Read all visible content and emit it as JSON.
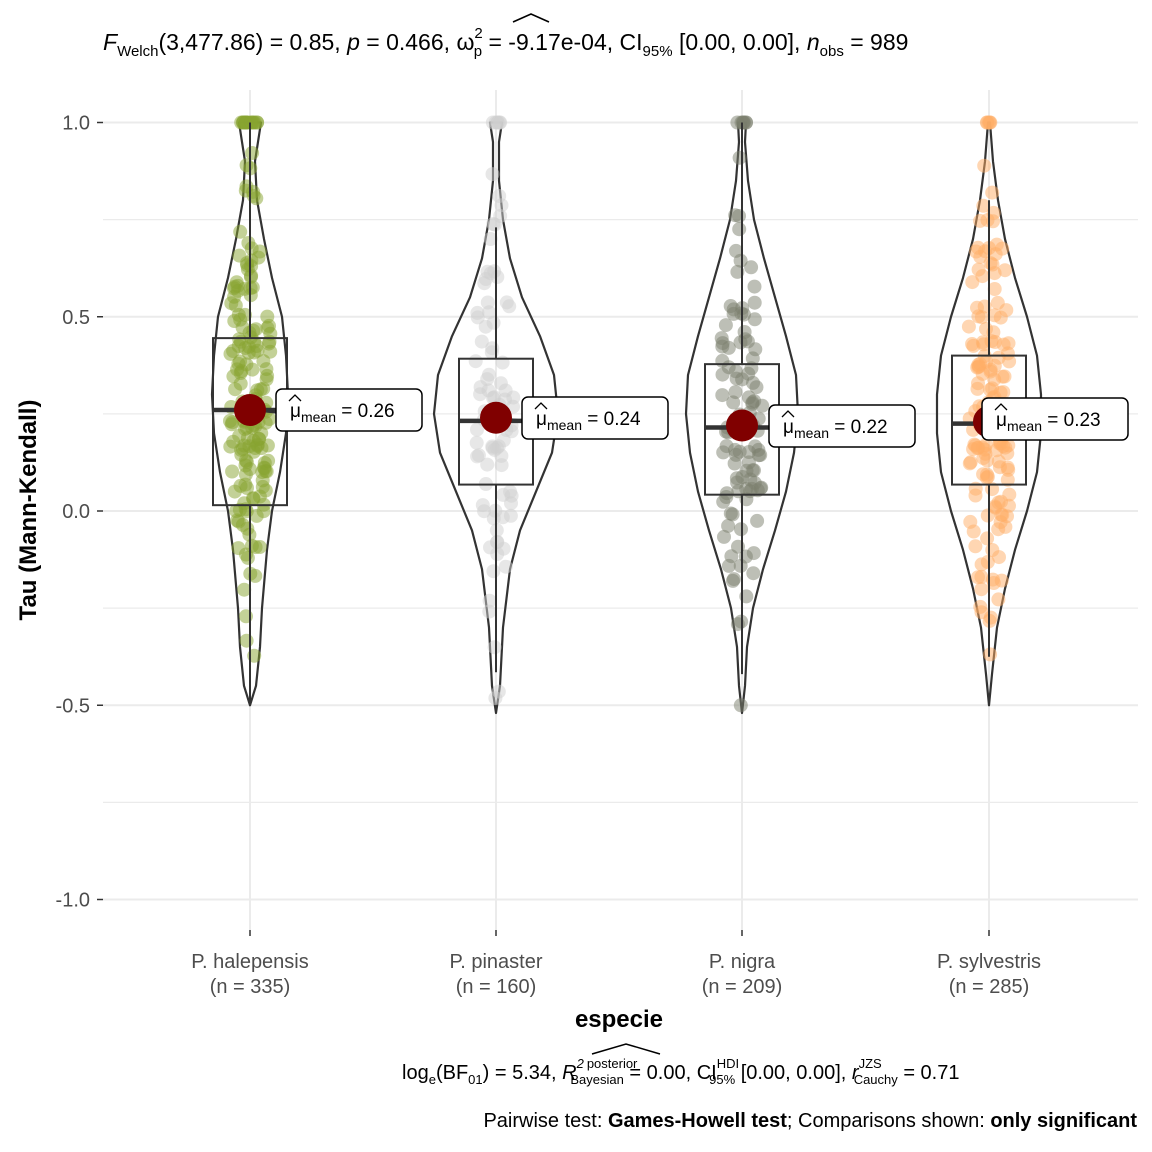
{
  "subtitle_top": {
    "F": "F",
    "F_sub": "Welch",
    "stat": "(3,477.86) = 0.85, ",
    "p": "p",
    "p_val": " = 0.466, ",
    "omega": "ω",
    "omega_sup": "2",
    "omega_sub": "p",
    "omega_val": " = -9.17e-04, CI",
    "ci_sub": "95%",
    "ci_val": " [0.00, 0.00], ",
    "n": "n",
    "n_sub": "obs",
    "n_val": " = 989"
  },
  "caption": {
    "bf_pre": "log",
    "bf_e": "e",
    "bf_mid": "(BF",
    "bf_sub": "01",
    "bf_val": ") = 5.34, ",
    "r2": "R",
    "r2_sup1": "2",
    "r2_sup2": "posterior",
    "r2_sub": "Bayesian",
    "r2_val": " = 0.00, CI",
    "hdi_sup": "HDI",
    "hdi_sub": "95%",
    "hdi_val": " [0.00, 0.00], ",
    "r": "r",
    "r_sup": "JZS",
    "r_sub": "Cauchy",
    "r_val": " = 0.71"
  },
  "pairwise": {
    "prefix": "Pairwise test: ",
    "test": "Games-Howell test",
    "middle": "; Comparisons shown: ",
    "shown": "only significant"
  },
  "chart_data": {
    "type": "violin-box-scatter",
    "xlabel": "especie",
    "ylabel": "Tau (Mann-Kendall)",
    "ylim": [
      -1.0,
      1.0
    ],
    "yticks": [
      -1.0,
      -0.5,
      0.0,
      0.5,
      1.0
    ],
    "ytick_labels": [
      "-1.0",
      "-0.5",
      "0.0",
      "0.5",
      "1.0"
    ],
    "grid": true,
    "mean_label_prefix": "μ",
    "mean_label_sub": "mean",
    "groups": [
      {
        "name": "P. halepensis",
        "n_label": "(n = 335)",
        "n": 335,
        "color": "#87a330",
        "mean": 0.26,
        "mean_label": " = 0.26",
        "q1": 0.015,
        "median": 0.26,
        "q3": 0.445,
        "whisker_low": -0.5,
        "whisker_high": 1.0,
        "min": -0.5,
        "max": 1.0
      },
      {
        "name": "P. pinaster",
        "n_label": "(n = 160)",
        "n": 160,
        "color": "#cfcfcf",
        "mean": 0.24,
        "mean_label": " = 0.24",
        "q1": 0.068,
        "median": 0.232,
        "q3": 0.392,
        "whisker_low": -0.415,
        "whisker_high": 0.73,
        "min": -0.52,
        "max": 1.0
      },
      {
        "name": "P. nigra",
        "n_label": "(n = 209)",
        "n": 209,
        "color": "#7c7f6d",
        "mean": 0.22,
        "mean_label": " = 0.22",
        "q1": 0.042,
        "median": 0.215,
        "q3": 0.378,
        "whisker_low": -0.42,
        "whisker_high": 1.0,
        "min": -0.52,
        "max": 1.0
      },
      {
        "name": "P. sylvestris",
        "n_label": "(n = 285)",
        "n": 285,
        "color": "#ffae66",
        "mean": 0.23,
        "mean_label": " = 0.23",
        "q1": 0.068,
        "median": 0.225,
        "q3": 0.4,
        "whisker_low": -0.375,
        "whisker_high": 0.8,
        "min": -0.5,
        "max": 1.0
      }
    ],
    "mean_color": "#800000"
  }
}
